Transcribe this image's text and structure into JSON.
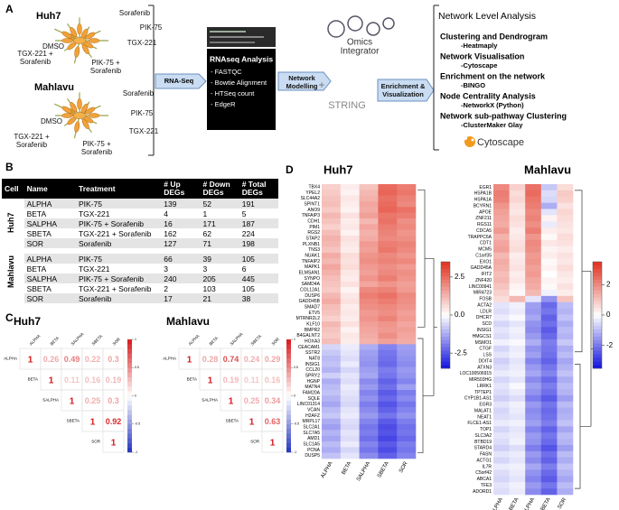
{
  "panel_a": {
    "label": "A",
    "lines": [
      {
        "title": "Huh7",
        "treatments": [
          "DMSO",
          "Sorafenib",
          "PIK-75",
          "TGX-221",
          "TGX-221 + Sorafenib",
          "PIK-75 + Sorafenib"
        ]
      },
      {
        "title": "Mahlavu",
        "treatments": [
          "DMSO",
          "Sorafenib",
          "PIK-75",
          "TGX-221",
          "TGX-221 + Sorafenib",
          "PIK-75 + Sorafenib"
        ]
      }
    ],
    "rnaseq": "RNA-Seq",
    "analysis": {
      "title": "RNAseq Analysis",
      "items": [
        "- FASTQC",
        "- Bowtie Alignment",
        "- HTSeq count",
        "- EdgeR"
      ]
    },
    "modelling": "Network Modelling",
    "omics": [
      "Omics",
      "Integrator"
    ],
    "plus": "+",
    "string": "STRING",
    "enrichment": "Enrichment & Visualization",
    "network": {
      "title": "Network Level Analysis",
      "items": [
        {
          "head": "Clustering and Dendrogram",
          "sub": "-Heatmaply"
        },
        {
          "head": "Network Visualisation",
          "sub": "-Cytoscape"
        },
        {
          "head": "Enrichment  on the network",
          "sub": "-BINGO"
        },
        {
          "head": "Node Centrality Analysis",
          "sub": "-NetworkX (Python)"
        },
        {
          "head": "Network sub-pathway Clustering",
          "sub": "-ClusterMaker Glay"
        }
      ]
    },
    "cytoscape": "Cytoscape"
  },
  "panel_b": {
    "label": "B",
    "columns": [
      "Cell",
      "Name",
      "Treatment",
      "# Up DEGs",
      "# Down DEGs",
      "# Total DEGs"
    ],
    "groups": [
      {
        "cell": "Huh7",
        "rows": [
          [
            "ALPHA",
            "PIK-75",
            139,
            52,
            191
          ],
          [
            "BETA",
            "TGX-221",
            4,
            1,
            5
          ],
          [
            "SALPHA",
            "PIK-75 + Sorafenib",
            16,
            171,
            187
          ],
          [
            "SBETA",
            "TGX-221 + Sorafenib",
            162,
            62,
            224
          ],
          [
            "SOR",
            "Sorafenib",
            127,
            71,
            198
          ]
        ]
      },
      {
        "cell": "Mahlavu",
        "rows": [
          [
            "ALPHA",
            "PIK-75",
            66,
            39,
            105
          ],
          [
            "BETA",
            "TGX-221",
            3,
            3,
            6
          ],
          [
            "SALPHA",
            "PIK-75 + Sorafenib",
            240,
            205,
            445
          ],
          [
            "SBETA",
            "TGX-221 + Sorafenib",
            2,
            103,
            105
          ],
          [
            "SOR",
            "Sorafenib",
            17,
            21,
            38
          ]
        ]
      }
    ]
  },
  "panel_c": {
    "label": "C",
    "clim": [
      -1,
      1
    ],
    "ticks": [
      1,
      0.5,
      0,
      -0.5,
      -1
    ],
    "colors": {
      "low": "#2233bb",
      "mid": "#ffffff",
      "high": "#d7191c"
    },
    "matrices": [
      {
        "title": "Huh7",
        "labels": [
          "ALPHA",
          "BETA",
          "SALPHA",
          "SBETA",
          "SOR"
        ],
        "values": [
          [
            1,
            0.26,
            0.49,
            0.22,
            0.3
          ],
          [
            1,
            0.11,
            0.16,
            0.19
          ],
          [
            1,
            0.25,
            0.3
          ],
          [
            1,
            0.92
          ],
          [
            1
          ]
        ]
      },
      {
        "title": "Mahlavu",
        "labels": [
          "ALPHA",
          "BETA",
          "SALPHA",
          "SBETA",
          "SOR"
        ],
        "values": [
          [
            1,
            0.28,
            0.74,
            0.24,
            0.29
          ],
          [
            1,
            0.19,
            0.11,
            0.16
          ],
          [
            1,
            0.25,
            0.34
          ],
          [
            1,
            0.63
          ],
          [
            1
          ]
        ]
      }
    ]
  },
  "panel_d": {
    "label": "D",
    "clim": [
      -3.5,
      3.5
    ],
    "colors": {
      "low": "#1010dd",
      "mid": "#ffffff",
      "high": "#e0301e"
    },
    "heatmaps": [
      {
        "title": "Huh7",
        "columns": [
          "ALPHA",
          "BETA",
          "SALPHA",
          "SBETA",
          "SOR"
        ],
        "ticks": [
          2.5,
          {
            "value": 0,
            "label": "0.0"
          },
          -2.5
        ],
        "genes": [
          "TBX4",
          "YPEL2",
          "SLC44A2",
          "SPINT1",
          "ANO9",
          "TNFAIP3",
          "CDH1",
          "PIM1",
          "RGS2",
          "STAP2",
          "PLXNB1",
          "TNS3",
          "NUAK1",
          "TNFAIP2",
          "MAPK1",
          "ELMSAN1",
          "SYNPO",
          "SAMD4A",
          "COL12A1",
          "DUSP6",
          "GADD45B",
          "SMAD7",
          "ETV5",
          "MTRNR2L2",
          "KLF10",
          "BMPR2",
          "B4GALNT2",
          "HOXA3",
          "CEACAM1",
          "SSTR2",
          "NAT8",
          "INSIG1",
          "CCL20",
          "SPRY2",
          "HGNP",
          "MATN4",
          "FAM20A",
          "SQLE",
          "LINC01314",
          "VCAN",
          "H2AFZ",
          "MRPL17",
          "SLC2A1",
          "SLC7A5",
          "AMD1",
          "SLC1A5",
          "PCNA",
          "DUSP5"
        ],
        "values": [
          [
            0.8,
            0.3,
            1.0,
            2.5,
            2.2
          ],
          [
            0.9,
            0.2,
            1.2,
            2.6,
            2.3
          ],
          [
            1.0,
            0.4,
            1.3,
            2.4,
            2.1
          ],
          [
            1.1,
            0.3,
            1.5,
            2.5,
            2.0
          ],
          [
            0.9,
            0.2,
            1.4,
            2.6,
            2.4
          ],
          [
            1.2,
            0.5,
            1.6,
            2.3,
            2.2
          ],
          [
            1.0,
            0.3,
            1.2,
            2.4,
            1.9
          ],
          [
            0.8,
            0.4,
            1.5,
            2.2,
            2.0
          ],
          [
            1.1,
            0.2,
            1.3,
            2.1,
            1.8
          ],
          [
            1.3,
            0.5,
            1.4,
            2.0,
            1.9
          ],
          [
            1.2,
            0.4,
            1.7,
            2.2,
            2.1
          ],
          [
            1.0,
            0.3,
            1.6,
            2.3,
            2.0
          ],
          [
            1.4,
            0.6,
            1.8,
            2.0,
            1.8
          ],
          [
            1.2,
            0.5,
            1.9,
            2.1,
            2.0
          ],
          [
            1.5,
            0.6,
            1.7,
            1.9,
            1.7
          ],
          [
            1.3,
            0.4,
            1.6,
            2.0,
            1.9
          ],
          [
            1.1,
            0.3,
            1.8,
            2.2,
            1.8
          ],
          [
            1.0,
            0.5,
            1.5,
            1.8,
            1.6
          ],
          [
            0.9,
            0.2,
            2.0,
            2.1,
            1.7
          ],
          [
            1.2,
            0.4,
            2.2,
            2.4,
            2.0
          ],
          [
            1.4,
            0.5,
            2.0,
            2.2,
            1.9
          ],
          [
            1.1,
            0.3,
            1.9,
            2.0,
            1.8
          ],
          [
            1.0,
            0.4,
            1.7,
            1.9,
            1.6
          ],
          [
            0.8,
            0.3,
            1.8,
            2.1,
            1.7
          ],
          [
            1.2,
            0.5,
            1.6,
            1.8,
            1.5
          ],
          [
            1.0,
            0.2,
            1.5,
            1.7,
            1.6
          ],
          [
            0.9,
            0.4,
            1.4,
            1.9,
            1.5
          ],
          [
            1.1,
            0.3,
            1.3,
            1.6,
            1.4
          ],
          [
            -0.6,
            -0.3,
            -1.2,
            -1.8,
            -1.4
          ],
          [
            -0.8,
            -0.4,
            -1.4,
            -2.0,
            -1.5
          ],
          [
            -1.0,
            -0.5,
            -1.5,
            -2.1,
            -1.6
          ],
          [
            -0.9,
            -0.3,
            -1.6,
            -2.2,
            -1.7
          ],
          [
            -1.1,
            -0.6,
            -1.4,
            -1.9,
            -1.5
          ],
          [
            -0.7,
            -0.4,
            -1.3,
            -2.0,
            -1.6
          ],
          [
            -1.2,
            -0.5,
            -1.7,
            -2.3,
            -1.8
          ],
          [
            -1.0,
            -0.3,
            -1.5,
            -2.1,
            -1.4
          ],
          [
            -0.9,
            -0.4,
            -1.8,
            -2.4,
            -1.9
          ],
          [
            -1.1,
            -0.5,
            -1.6,
            -2.2,
            -1.7
          ],
          [
            -1.3,
            -0.6,
            -1.9,
            -2.5,
            -2.0
          ],
          [
            -1.0,
            -0.4,
            -1.7,
            -2.3,
            -1.8
          ],
          [
            -0.8,
            -0.3,
            -1.5,
            -2.0,
            -1.6
          ],
          [
            -1.2,
            -0.5,
            -1.8,
            -2.4,
            -1.9
          ],
          [
            -1.4,
            -0.6,
            -2.0,
            -2.6,
            -2.1
          ],
          [
            -1.1,
            -0.4,
            -1.9,
            -2.5,
            -2.0
          ],
          [
            -1.3,
            -0.5,
            -2.1,
            -2.7,
            -2.2
          ],
          [
            -1.0,
            -0.3,
            -1.8,
            -2.4,
            -1.9
          ],
          [
            -1.2,
            -0.6,
            -2.0,
            -2.6,
            -2.0
          ],
          [
            -0.9,
            -0.4,
            -1.7,
            -2.3,
            -1.8
          ]
        ]
      },
      {
        "title": "Mahlavu",
        "columns": [
          "ALPHA",
          "BETA",
          "SALPHA",
          "SBETA",
          "SOR"
        ],
        "ticks": [
          2,
          0,
          -2
        ],
        "genes": [
          "EGR1",
          "HSPA1B",
          "HSPA1A",
          "BCYRN1",
          "APOE",
          "ZNF211",
          "RGS11",
          "CDCA5",
          "TRAPPC6A",
          "CDT1",
          "MCM5",
          "C1orf35",
          "EXO1",
          "GADD45A",
          "IFIT2",
          "ZNF420",
          "LINC00941",
          "MIR4723",
          "FOSB",
          "ACTA2",
          "LDLR",
          "DHCR7",
          "SCD",
          "INSIG1",
          "HMGCS1",
          "MSMO1",
          "CTGF",
          "LSS",
          "DDIT4",
          "ATXN3",
          "LOC100506915",
          "MIR503HG",
          "LRRK1",
          "TPTEP1",
          "CYP1B1-AS1",
          "EGR3",
          "MALAT1",
          "NEAT1",
          "FLCE1-AS1",
          "TOP1",
          "SLC3A2",
          "BTBD19",
          "STARD4",
          "FASN",
          "ACTG1",
          "IL7R",
          "C5orf42",
          "ABCA1",
          "TFE3",
          "ADORD1"
        ],
        "values": [
          [
            2.0,
            0.8,
            2.4,
            -0.8,
            0.6
          ],
          [
            2.2,
            0.6,
            2.5,
            -0.5,
            0.9
          ],
          [
            2.1,
            0.7,
            2.3,
            -0.6,
            0.8
          ],
          [
            1.8,
            0.5,
            2.2,
            -1.2,
            0.5
          ],
          [
            1.6,
            0.4,
            2.0,
            -0.4,
            0.7
          ],
          [
            1.5,
            0.6,
            2.1,
            0.2,
            0.6
          ],
          [
            1.4,
            0.5,
            1.9,
            -0.3,
            0.5
          ],
          [
            1.7,
            0.3,
            2.2,
            0.3,
            0.4
          ],
          [
            1.3,
            0.4,
            1.8,
            0.1,
            0.6
          ],
          [
            1.5,
            0.5,
            2.0,
            0.4,
            0.5
          ],
          [
            1.6,
            0.6,
            1.9,
            0.2,
            0.3
          ],
          [
            1.2,
            0.3,
            1.7,
            0.3,
            0.5
          ],
          [
            1.4,
            0.4,
            1.8,
            0.1,
            0.4
          ],
          [
            1.3,
            0.5,
            1.6,
            0.2,
            0.6
          ],
          [
            1.1,
            0.3,
            1.7,
            0.0,
            0.4
          ],
          [
            1.2,
            0.4,
            1.5,
            0.2,
            0.3
          ],
          [
            1.0,
            0.2,
            1.4,
            0.1,
            0.5
          ],
          [
            0.8,
            0.1,
            1.2,
            -0.2,
            0.3
          ],
          [
            0.6,
            1.2,
            -0.4,
            -1.6,
            1.0
          ],
          [
            -0.4,
            -0.2,
            -1.4,
            -2.2,
            -1.0
          ],
          [
            -0.5,
            -0.3,
            -1.5,
            -2.0,
            -1.1
          ],
          [
            -0.3,
            -0.1,
            -1.3,
            -2.3,
            -0.9
          ],
          [
            -0.6,
            -0.4,
            -1.6,
            -2.1,
            -1.2
          ],
          [
            -0.4,
            -0.2,
            -1.7,
            -2.4,
            -1.0
          ],
          [
            -0.5,
            -0.3,
            -1.5,
            -2.2,
            -1.1
          ],
          [
            -0.2,
            -0.1,
            -1.2,
            -1.9,
            -0.8
          ],
          [
            -0.6,
            -0.3,
            -1.6,
            -2.0,
            -1.2
          ],
          [
            -0.4,
            -0.2,
            -1.4,
            -2.1,
            -1.0
          ],
          [
            -0.7,
            -0.4,
            -1.8,
            -2.3,
            -1.3
          ],
          [
            -0.5,
            -0.3,
            -1.5,
            -2.0,
            -1.1
          ],
          [
            -0.3,
            -0.2,
            -1.3,
            -1.8,
            -0.9
          ],
          [
            -0.6,
            -0.4,
            -1.7,
            -2.2,
            -1.2
          ],
          [
            -0.4,
            -0.1,
            -1.4,
            -1.9,
            -1.0
          ],
          [
            -0.5,
            -0.3,
            -1.6,
            -2.1,
            -1.1
          ],
          [
            -0.7,
            -0.5,
            -1.9,
            -2.4,
            -1.4
          ],
          [
            -0.4,
            -0.2,
            -1.5,
            -2.0,
            -1.0
          ],
          [
            -0.6,
            -0.3,
            -1.7,
            -2.2,
            -1.2
          ],
          [
            -0.5,
            -0.4,
            -1.6,
            -2.1,
            -1.1
          ],
          [
            -0.3,
            -0.2,
            -1.4,
            -1.9,
            -0.9
          ],
          [
            -0.6,
            -0.4,
            -1.8,
            -2.3,
            -1.3
          ],
          [
            -0.4,
            -0.3,
            -1.5,
            -2.0,
            -1.0
          ],
          [
            -0.5,
            -0.2,
            -1.6,
            -2.2,
            -1.1
          ],
          [
            -0.7,
            -0.5,
            -1.9,
            -2.5,
            -1.4
          ],
          [
            -0.4,
            -0.3,
            -1.5,
            -2.1,
            -1.0
          ],
          [
            -0.6,
            -0.4,
            -1.7,
            -2.3,
            -1.2
          ],
          [
            -0.3,
            -0.2,
            -1.3,
            -1.9,
            -0.9
          ],
          [
            -0.5,
            -0.3,
            -1.6,
            -2.2,
            -1.1
          ],
          [
            -0.6,
            -0.4,
            -1.8,
            -2.4,
            -1.3
          ],
          [
            -0.4,
            -0.2,
            -1.5,
            -2.0,
            -1.0
          ],
          [
            -0.5,
            -0.3,
            -1.7,
            -2.3,
            -1.2
          ]
        ]
      }
    ]
  }
}
